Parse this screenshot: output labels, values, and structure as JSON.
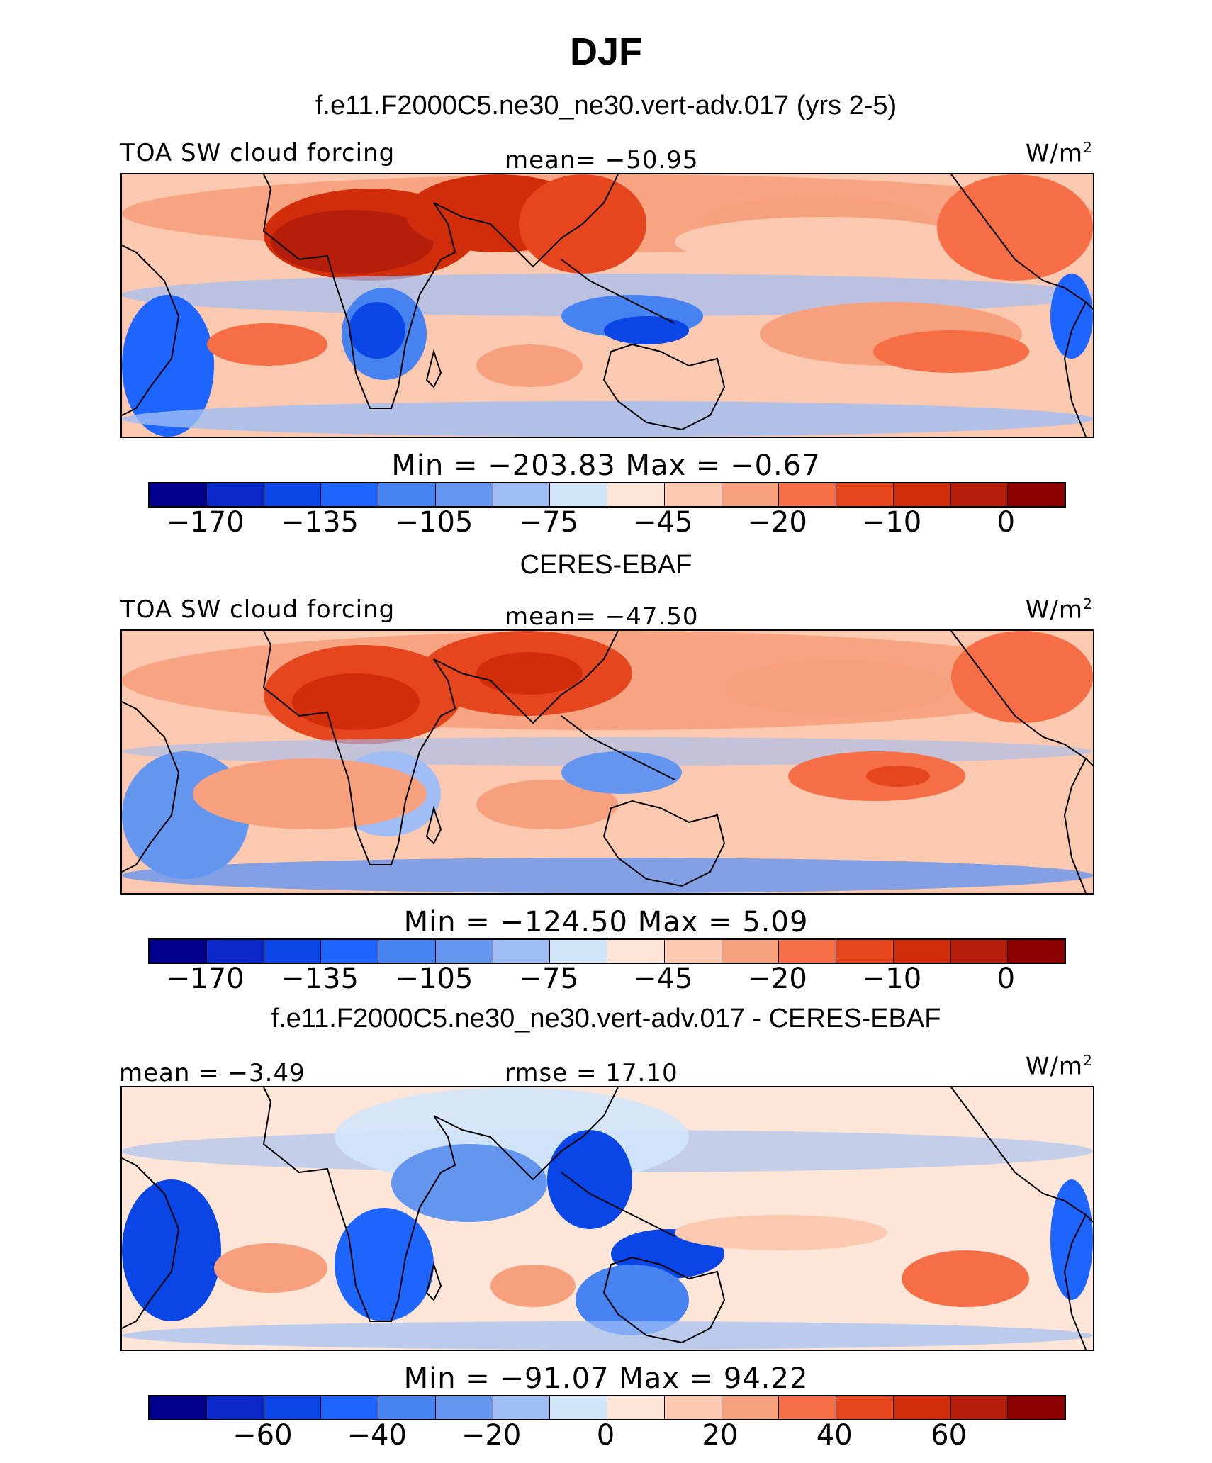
{
  "title": "DJF",
  "palette": [
    "#00008c",
    "#0a28c8",
    "#0a46e6",
    "#1e64ff",
    "#4682f0",
    "#6496f0",
    "#a0bef5",
    "#d2e6fa",
    "#fde6d8",
    "#fbc8b0",
    "#f7a07e",
    "#f56e46",
    "#e6461e",
    "#d22d0a",
    "#b41e0a",
    "#8c0000"
  ],
  "panels": [
    {
      "subtitle": "f.e11.F2000C5.ne30_ne30.vert-adv.017 (yrs 2-5)",
      "left_label": "TOA SW cloud forcing",
      "center_label": "mean= −50.95",
      "units": "W/m",
      "units_sup": "2",
      "minmax": "Min  =  −203.83  Max  =    −0.67",
      "ticks": [
        "−170",
        "−135",
        "−105",
        "−75",
        "−45",
        "−20",
        "−10",
        "0"
      ],
      "map": "model"
    },
    {
      "subtitle": "CERES-EBAF",
      "left_label": "TOA SW cloud forcing",
      "center_label": "mean= −47.50",
      "units": "W/m",
      "units_sup": "2",
      "minmax": "Min  =  −124.50  Max  =     5.09",
      "ticks": [
        "−170",
        "−135",
        "−105",
        "−75",
        "−45",
        "−20",
        "−10",
        "0"
      ],
      "map": "obs"
    },
    {
      "subtitle": "f.e11.F2000C5.ne30_ne30.vert-adv.017 - CERES-EBAF",
      "left_label": "mean  =   −3.49",
      "center_label": "rmse  =   17.10",
      "units": "W/m",
      "units_sup": "2",
      "minmax": "Min  =  −91.07  Max  =    94.22",
      "ticks": [
        "−60",
        "−40",
        "−20",
        "0",
        "20",
        "40",
        "60"
      ],
      "map": "diff"
    }
  ]
}
